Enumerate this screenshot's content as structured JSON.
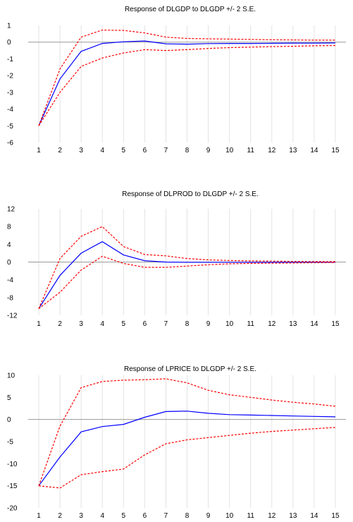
{
  "chart_data": [
    {
      "type": "line",
      "title": "Response of DLGDP to DLGDP +/- 2 S.E.",
      "x": [
        1,
        2,
        3,
        4,
        5,
        6,
        7,
        8,
        9,
        10,
        11,
        12,
        13,
        14,
        15
      ],
      "ylim": [
        -6,
        1
      ],
      "yticks": [
        -6,
        -5,
        -4,
        -3,
        -2,
        -1,
        0,
        1
      ],
      "series": [
        {
          "role": "response",
          "color": "#0000ff",
          "dashed": false,
          "values": [
            -5.0,
            -2.2,
            -0.55,
            -0.08,
            0.02,
            0.07,
            -0.1,
            -0.12,
            -0.09,
            -0.08,
            -0.08,
            -0.07,
            -0.06,
            -0.06,
            -0.05
          ]
        },
        {
          "role": "upper",
          "color": "#ff0000",
          "dashed": true,
          "values": [
            -5.0,
            -1.6,
            0.3,
            0.72,
            0.7,
            0.55,
            0.3,
            0.22,
            0.2,
            0.18,
            0.16,
            0.14,
            0.13,
            0.12,
            0.12
          ]
        },
        {
          "role": "lower",
          "color": "#ff0000",
          "dashed": true,
          "values": [
            -5.0,
            -3.0,
            -1.45,
            -0.95,
            -0.65,
            -0.45,
            -0.5,
            -0.45,
            -0.38,
            -0.33,
            -0.3,
            -0.27,
            -0.25,
            -0.22,
            -0.2
          ]
        }
      ]
    },
    {
      "type": "line",
      "title": "Response of DLPROD to DLGDP +/- 2 S.E.",
      "x": [
        1,
        2,
        3,
        4,
        5,
        6,
        7,
        8,
        9,
        10,
        11,
        12,
        13,
        14,
        15
      ],
      "ylim": [
        -12,
        12
      ],
      "yticks": [
        -12,
        -8,
        -4,
        0,
        4,
        8,
        12
      ],
      "series": [
        {
          "role": "response",
          "color": "#0000ff",
          "dashed": false,
          "values": [
            -10.5,
            -3.0,
            2.0,
            4.6,
            1.6,
            0.3,
            0.0,
            -0.05,
            -0.05,
            -0.05,
            -0.05,
            -0.05,
            -0.05,
            -0.05,
            -0.05
          ]
        },
        {
          "role": "upper",
          "color": "#ff0000",
          "dashed": true,
          "values": [
            -10.5,
            0.8,
            5.8,
            8.0,
            3.5,
            1.7,
            1.4,
            0.8,
            0.5,
            0.35,
            0.25,
            0.2,
            0.15,
            0.12,
            0.1
          ]
        },
        {
          "role": "lower",
          "color": "#ff0000",
          "dashed": true,
          "values": [
            -10.5,
            -6.8,
            -1.8,
            1.3,
            -0.3,
            -1.2,
            -1.2,
            -0.9,
            -0.6,
            -0.4,
            -0.3,
            -0.25,
            -0.2,
            -0.15,
            -0.1
          ]
        }
      ]
    },
    {
      "type": "line",
      "title": "Response of LPRICE to DLGDP +/- 2 S.E.",
      "x": [
        1,
        2,
        3,
        4,
        5,
        6,
        7,
        8,
        9,
        10,
        11,
        12,
        13,
        14,
        15
      ],
      "ylim": [
        -20,
        10
      ],
      "yticks": [
        -20,
        -15,
        -10,
        -5,
        0,
        5,
        10
      ],
      "series": [
        {
          "role": "response",
          "color": "#0000ff",
          "dashed": false,
          "values": [
            -15.0,
            -8.5,
            -2.8,
            -1.6,
            -1.1,
            0.5,
            1.8,
            1.9,
            1.4,
            1.1,
            1.0,
            0.9,
            0.8,
            0.7,
            0.6
          ]
        },
        {
          "role": "upper",
          "color": "#ff0000",
          "dashed": true,
          "values": [
            -15.0,
            -1.5,
            7.2,
            8.6,
            8.9,
            9.0,
            9.2,
            8.3,
            6.6,
            5.6,
            5.0,
            4.4,
            3.9,
            3.5,
            3.0
          ]
        },
        {
          "role": "lower",
          "color": "#ff0000",
          "dashed": true,
          "values": [
            -15.0,
            -15.5,
            -12.5,
            -11.8,
            -11.2,
            -8.0,
            -5.5,
            -4.6,
            -4.1,
            -3.6,
            -3.1,
            -2.7,
            -2.4,
            -2.1,
            -1.8
          ]
        }
      ]
    }
  ]
}
